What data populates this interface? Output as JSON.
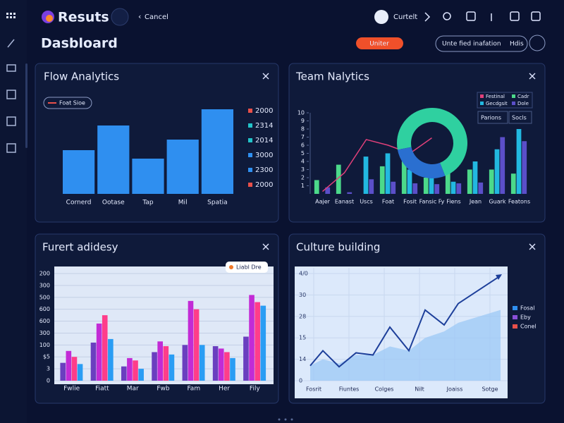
{
  "app": {
    "name": "Resuts",
    "back": "Cancel",
    "user": "Curtelt"
  },
  "page": {
    "title": "Dasbloard",
    "primary_button": "Uniter",
    "filter": "Unte fied inafation",
    "filter_action": "Hdis"
  },
  "panels": [
    "Flow Analytics",
    "Team Nalytics",
    "Furert adidesy",
    "Culture building"
  ],
  "chart_data": [
    {
      "type": "bar",
      "legend_label": "Foat Sioe",
      "categories": [
        "Cornerd",
        "Ootase",
        "Tap",
        "Mil",
        "Spatia"
      ],
      "values": [
        62,
        97,
        50,
        77,
        120
      ],
      "color": "#2f8ff0",
      "side_labels": [
        {
          "label": "2000",
          "color": "#e8504a"
        },
        {
          "label": "2314",
          "color": "#22c3c9"
        },
        {
          "label": "2014",
          "color": "#22c3c9"
        },
        {
          "label": "3000",
          "color": "#2f8ff0"
        },
        {
          "label": "2300",
          "color": "#2f8ff0"
        },
        {
          "label": "2000",
          "color": "#e8504a"
        }
      ]
    },
    {
      "type": "bar_line",
      "categories": [
        "Aajer",
        "Eanast",
        "Uscs",
        "Foat",
        "Fosit",
        "Fansic Fy",
        "Fiens",
        "Jean",
        "Guark",
        "Featons"
      ],
      "ylim": [
        0,
        10
      ],
      "yticks": [
        1,
        2,
        3,
        4,
        5,
        6,
        7,
        8,
        9,
        10
      ],
      "series": [
        {
          "name": "Festinal",
          "color": "#e0407a",
          "style": "line",
          "values": [
            0.3,
            2.6,
            6.7,
            6.0,
            5.0,
            6.9,
            null,
            null,
            null,
            null
          ]
        },
        {
          "name": "Cadr",
          "color": "#4cd98a",
          "style": "bar",
          "values": [
            1.7,
            3.6,
            0,
            3.4,
            4.0,
            2.0,
            3.2,
            3.0,
            3.0,
            2.5
          ]
        },
        {
          "name": "Gecdgsit",
          "color": "#22b8e0",
          "style": "bar",
          "values": [
            0,
            0,
            4.6,
            5.0,
            3.0,
            3.5,
            1.5,
            4.0,
            5.5,
            8.0
          ]
        },
        {
          "name": "Dole",
          "color": "#5b4fc9",
          "style": "bar",
          "values": [
            0.8,
            0.2,
            1.8,
            1.5,
            1.3,
            1.2,
            1.3,
            1.4,
            7.0,
            6.5
          ]
        }
      ],
      "tags": [
        "Parions",
        "Socls"
      ]
    },
    {
      "type": "pie",
      "values": [
        72,
        28
      ],
      "colors": [
        "#2fd0a0",
        "#2a6fd0"
      ]
    },
    {
      "type": "grouped_bar",
      "annotation": "Liabl Dre",
      "categories": [
        "Fwlie",
        "Fiatt",
        "Mar",
        "Fwb",
        "Fam",
        "Her",
        "Fily"
      ],
      "ylim": [
        0,
        9
      ],
      "yticks": [
        {
          "value": 0,
          "label": "0"
        },
        {
          "value": 1,
          "label": "3"
        },
        {
          "value": 2,
          "label": "$5"
        },
        {
          "value": 3,
          "label": "100"
        },
        {
          "value": 4,
          "label": "300"
        },
        {
          "value": 5,
          "label": "600"
        },
        {
          "value": 6,
          "label": "600"
        },
        {
          "value": 7,
          "label": "500"
        },
        {
          "value": 8,
          "label": "300"
        },
        {
          "value": 9,
          "label": "200"
        }
      ],
      "series": [
        {
          "color": "#6a3fbf",
          "values": [
            1.5,
            3.2,
            1.2,
            2.4,
            3.0,
            2.9,
            3.7
          ]
        },
        {
          "color": "#c22bd6",
          "values": [
            2.5,
            4.8,
            1.9,
            3.3,
            6.7,
            2.7,
            7.2
          ]
        },
        {
          "color": "#ff3d8a",
          "values": [
            2.0,
            5.5,
            1.7,
            2.9,
            6.0,
            2.4,
            6.6
          ]
        },
        {
          "color": "#2a9df4",
          "values": [
            1.4,
            3.5,
            1.0,
            2.2,
            3.0,
            1.9,
            6.3
          ]
        }
      ]
    },
    {
      "type": "line",
      "x": [
        0.4,
        0.76,
        1.22,
        1.7,
        2.18,
        2.66,
        3.2,
        3.66,
        4.2,
        4.6,
        5.8
      ],
      "xlim": [
        0,
        6
      ],
      "xticks": [
        {
          "value": 0.5,
          "label": "Fosrit"
        },
        {
          "value": 1.5,
          "label": "Fiuntes"
        },
        {
          "value": 2.5,
          "label": "Colges"
        },
        {
          "value": 3.5,
          "label": "Nilt"
        },
        {
          "value": 4.5,
          "label": "Joaiss"
        },
        {
          "value": 5.5,
          "label": "Sotge"
        }
      ],
      "ylim": [
        0,
        5
      ],
      "yticks": [
        {
          "value": 0,
          "label": "0"
        },
        {
          "value": 1,
          "label": "14"
        },
        {
          "value": 2,
          "label": "15"
        },
        {
          "value": 3,
          "label": "28"
        },
        {
          "value": 4,
          "label": "30"
        },
        {
          "value": 5,
          "label": "4/0"
        }
      ],
      "series": [
        {
          "color": "#1d3f9a",
          "style": "line",
          "values": [
            0.7,
            1.4,
            0.65,
            1.3,
            1.2,
            2.5,
            1.4,
            3.3,
            2.6,
            3.6,
            4.9
          ]
        },
        {
          "color": "#9cc8f5",
          "style": "area",
          "values": [
            0.7,
            1.0,
            0.8,
            1.2,
            1.2,
            1.6,
            1.4,
            2.0,
            2.3,
            2.7,
            3.3
          ]
        }
      ],
      "legend": [
        {
          "name": "Fosal",
          "color": "#2f8ff0"
        },
        {
          "name": "Eby",
          "color": "#8a4fd8"
        },
        {
          "name": "Conel",
          "color": "#e8504a"
        }
      ]
    }
  ]
}
